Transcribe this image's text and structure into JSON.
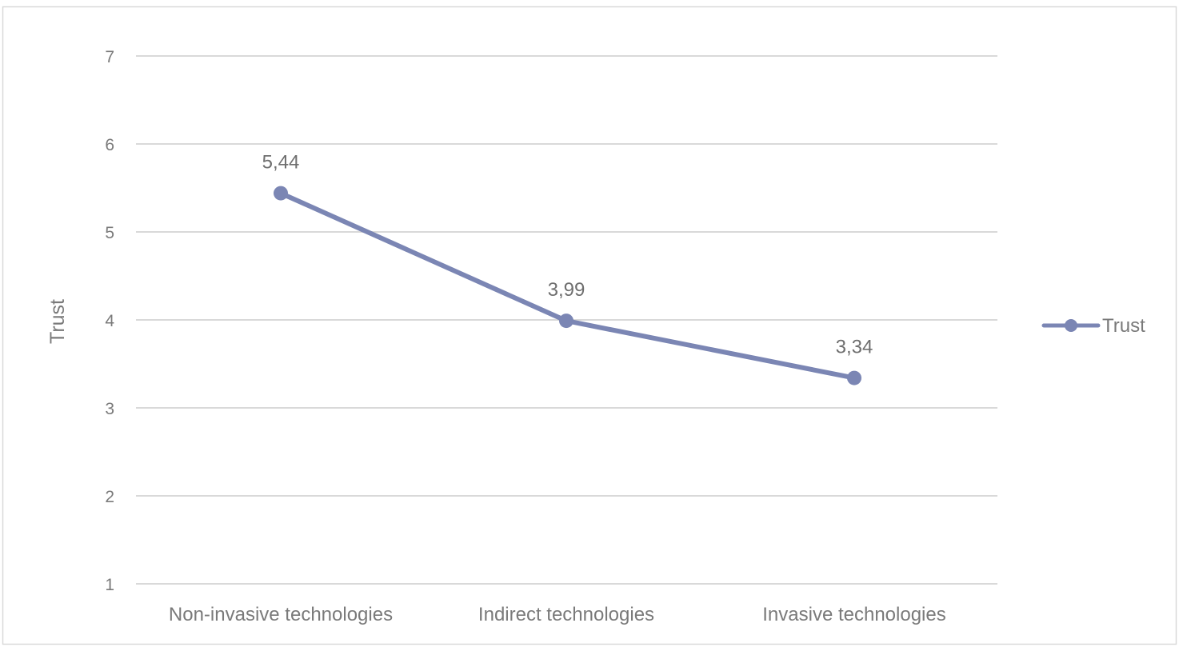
{
  "chart_data": {
    "type": "line",
    "categories": [
      "Non-invasive technologies",
      "Indirect technologies",
      "Invasive technologies"
    ],
    "series": [
      {
        "name": "Trust",
        "values": [
          5.44,
          3.99,
          3.34
        ],
        "labels": [
          "5,44",
          "3,99",
          "3,34"
        ],
        "color": "#7b86b4"
      }
    ],
    "ylabel": "Trust",
    "xlabel": "",
    "ylim": [
      1,
      7
    ],
    "yticks": [
      "1",
      "2",
      "3",
      "4",
      "5",
      "6",
      "7"
    ],
    "grid": true,
    "legend_position": "right"
  }
}
